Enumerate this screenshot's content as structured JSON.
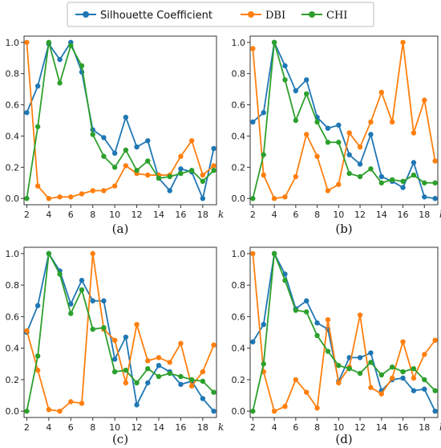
{
  "legend": {
    "entries": [
      {
        "name": "Silhouette Coefficient",
        "color": "#1f77b4"
      },
      {
        "name": "DBI",
        "color": "#ff7f0e"
      },
      {
        "name": "CHI",
        "color": "#2ca02c"
      }
    ]
  },
  "chart_data": [
    {
      "type": "line",
      "caption": "(a)",
      "xlabel": "k",
      "x": [
        2,
        3,
        4,
        5,
        6,
        7,
        8,
        9,
        10,
        11,
        12,
        13,
        14,
        15,
        16,
        17,
        18,
        19
      ],
      "xticks": [
        2,
        4,
        6,
        8,
        10,
        12,
        14,
        16,
        18
      ],
      "ylim": [
        0,
        1.0
      ],
      "yticks": [
        "0.0",
        "0.2",
        "0.4",
        "0.6",
        "0.8",
        "1.0"
      ],
      "series": [
        {
          "name": "Silhouette Coefficient",
          "color": "#1f77b4",
          "values": [
            0.55,
            0.72,
            0.99,
            0.89,
            1.0,
            0.81,
            0.44,
            0.39,
            0.29,
            0.52,
            0.33,
            0.37,
            0.13,
            0.05,
            0.19,
            0.17,
            0.0,
            0.32
          ]
        },
        {
          "name": "DBI",
          "color": "#ff7f0e",
          "values": [
            1.0,
            0.08,
            0.0,
            0.01,
            0.01,
            0.03,
            0.05,
            0.05,
            0.08,
            0.21,
            0.16,
            0.15,
            0.15,
            0.15,
            0.27,
            0.37,
            0.15,
            0.21
          ]
        },
        {
          "name": "CHI",
          "color": "#2ca02c",
          "values": [
            0.0,
            0.46,
            1.0,
            0.74,
            0.98,
            0.85,
            0.41,
            0.27,
            0.2,
            0.31,
            0.18,
            0.24,
            0.13,
            0.14,
            0.16,
            0.18,
            0.11,
            0.18
          ]
        }
      ]
    },
    {
      "type": "line",
      "caption": "(b)",
      "xlabel": "k",
      "x": [
        2,
        3,
        4,
        5,
        6,
        7,
        8,
        9,
        10,
        11,
        12,
        13,
        14,
        15,
        16,
        17,
        18,
        19
      ],
      "xticks": [
        2,
        4,
        6,
        8,
        10,
        12,
        14,
        16,
        18
      ],
      "ylim": [
        0,
        1.0
      ],
      "yticks": [
        "0.0",
        "0.2",
        "0.4",
        "0.6",
        "0.8",
        "1.0"
      ],
      "series": [
        {
          "name": "Silhouette Coefficient",
          "color": "#1f77b4",
          "values": [
            0.49,
            0.55,
            1.0,
            0.85,
            0.69,
            0.76,
            0.52,
            0.45,
            0.47,
            0.28,
            0.22,
            0.41,
            0.14,
            0.11,
            0.07,
            0.23,
            0.01,
            0.0
          ]
        },
        {
          "name": "DBI",
          "color": "#ff7f0e",
          "values": [
            0.96,
            0.15,
            0.0,
            0.01,
            0.14,
            0.41,
            0.27,
            0.05,
            0.09,
            0.42,
            0.33,
            0.49,
            0.68,
            0.49,
            1.0,
            0.42,
            0.63,
            0.24
          ]
        },
        {
          "name": "CHI",
          "color": "#2ca02c",
          "values": [
            0.0,
            0.28,
            1.0,
            0.76,
            0.5,
            0.67,
            0.49,
            0.36,
            0.36,
            0.16,
            0.14,
            0.19,
            0.1,
            0.12,
            0.11,
            0.15,
            0.1,
            0.1
          ]
        }
      ]
    },
    {
      "type": "line",
      "caption": "(c)",
      "xlabel": "k",
      "x": [
        2,
        3,
        4,
        5,
        6,
        7,
        8,
        9,
        10,
        11,
        12,
        13,
        14,
        15,
        16,
        17,
        18,
        19
      ],
      "xticks": [
        2,
        4,
        6,
        8,
        10,
        12,
        14,
        16,
        18
      ],
      "ylim": [
        0,
        1.0
      ],
      "yticks": [
        "0.0",
        "0.2",
        "0.4",
        "0.6",
        "0.8",
        "1.0"
      ],
      "series": [
        {
          "name": "Silhouette Coefficient",
          "color": "#1f77b4",
          "values": [
            0.5,
            0.67,
            1.0,
            0.89,
            0.68,
            0.83,
            0.7,
            0.7,
            0.33,
            0.47,
            0.04,
            0.18,
            0.29,
            0.25,
            0.17,
            0.19,
            0.08,
            0.0
          ]
        },
        {
          "name": "DBI",
          "color": "#ff7f0e",
          "values": [
            0.51,
            0.26,
            0.01,
            0.0,
            0.06,
            0.05,
            1.0,
            0.52,
            0.45,
            0.18,
            0.55,
            0.32,
            0.34,
            0.31,
            0.43,
            0.16,
            0.25,
            0.42
          ]
        },
        {
          "name": "CHI",
          "color": "#2ca02c",
          "values": [
            0.0,
            0.35,
            1.0,
            0.87,
            0.62,
            0.77,
            0.52,
            0.53,
            0.25,
            0.26,
            0.18,
            0.27,
            0.22,
            0.24,
            0.22,
            0.2,
            0.19,
            0.12
          ]
        }
      ]
    },
    {
      "type": "line",
      "caption": "(d)",
      "xlabel": "k",
      "x": [
        2,
        3,
        4,
        5,
        6,
        7,
        8,
        9,
        10,
        11,
        12,
        13,
        14,
        15,
        16,
        17,
        18,
        19
      ],
      "xticks": [
        2,
        4,
        6,
        8,
        10,
        12,
        14,
        16,
        18
      ],
      "ylim": [
        0,
        1.0
      ],
      "yticks": [
        "0.0",
        "0.2",
        "0.4",
        "0.6",
        "0.8",
        "1.0"
      ],
      "series": [
        {
          "name": "Silhouette Coefficient",
          "color": "#1f77b4",
          "values": [
            0.44,
            0.55,
            1.0,
            0.87,
            0.65,
            0.7,
            0.56,
            0.52,
            0.19,
            0.34,
            0.34,
            0.37,
            0.13,
            0.2,
            0.21,
            0.13,
            0.14,
            0.0
          ]
        },
        {
          "name": "DBI",
          "color": "#ff7f0e",
          "values": [
            1.0,
            0.25,
            0.0,
            0.03,
            0.2,
            0.12,
            0.02,
            0.58,
            0.18,
            0.28,
            0.61,
            0.15,
            0.11,
            0.21,
            0.44,
            0.21,
            0.36,
            0.45
          ]
        },
        {
          "name": "CHI",
          "color": "#2ca02c",
          "values": [
            0.0,
            0.3,
            1.0,
            0.83,
            0.64,
            0.63,
            0.48,
            0.38,
            0.29,
            0.27,
            0.24,
            0.31,
            0.23,
            0.28,
            0.25,
            0.27,
            0.2,
            0.13
          ]
        }
      ]
    }
  ]
}
